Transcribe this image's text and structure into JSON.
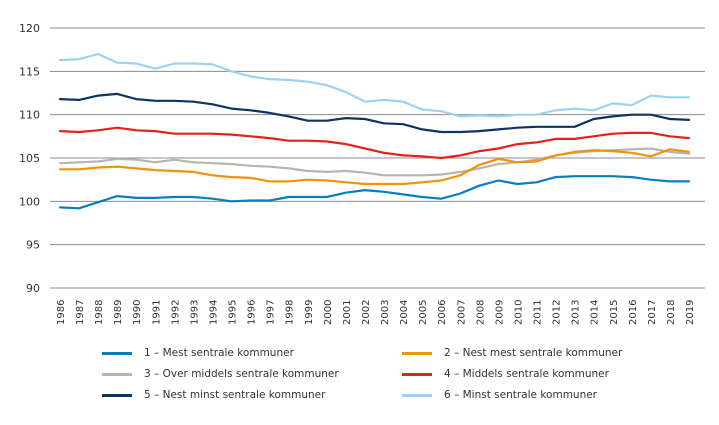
{
  "chart_data": {
    "type": "line",
    "title": "",
    "xlabel": "",
    "ylabel": "",
    "ylim": [
      90,
      120
    ],
    "yticks": [
      90,
      95,
      100,
      105,
      110,
      115,
      120
    ],
    "grid": true,
    "legend_position": "bottom",
    "x": [
      1986,
      1987,
      1988,
      1989,
      1990,
      1991,
      1992,
      1993,
      1994,
      1995,
      1996,
      1997,
      1998,
      1999,
      2000,
      2001,
      2002,
      2003,
      2004,
      2005,
      2006,
      2007,
      2008,
      2009,
      2010,
      2011,
      2012,
      2013,
      2014,
      2015,
      2016,
      2017,
      2018,
      2019
    ],
    "series": [
      {
        "name": "1 – Mest sentrale kommuner",
        "color": "#0a7dc1",
        "values": [
          99.3,
          99.2,
          99.9,
          100.6,
          100.4,
          100.4,
          100.5,
          100.5,
          100.3,
          100.0,
          100.1,
          100.1,
          100.5,
          100.5,
          100.5,
          101.0,
          101.3,
          101.1,
          100.8,
          100.5,
          100.3,
          100.9,
          101.8,
          102.4,
          102.0,
          102.2,
          102.8,
          102.9,
          102.9,
          102.9,
          102.8,
          102.5,
          102.3,
          102.3
        ]
      },
      {
        "name": "2 – Nest mest sentrale kommuner",
        "color": "#f0930a",
        "values": [
          103.7,
          103.7,
          103.9,
          104.0,
          103.8,
          103.6,
          103.5,
          103.4,
          103.0,
          102.8,
          102.7,
          102.3,
          102.3,
          102.5,
          102.4,
          102.2,
          102.0,
          102.0,
          102.0,
          102.2,
          102.4,
          103.0,
          104.2,
          104.9,
          104.5,
          104.6,
          105.3,
          105.7,
          105.9,
          105.8,
          105.6,
          105.2,
          106.0,
          105.7
        ]
      },
      {
        "name": "3 – Over middels sentrale kommuner",
        "color": "#b9b4ae",
        "values": [
          104.4,
          104.5,
          104.6,
          104.9,
          104.8,
          104.5,
          104.8,
          104.5,
          104.4,
          104.3,
          104.1,
          104.0,
          103.8,
          103.5,
          103.4,
          103.5,
          103.3,
          103.0,
          103.0,
          103.0,
          103.1,
          103.4,
          103.8,
          104.3,
          104.5,
          104.8,
          105.3,
          105.6,
          105.8,
          105.9,
          106.0,
          106.1,
          105.7,
          105.5
        ]
      },
      {
        "name": "4 – Middels sentrale kommuner",
        "color": "#e3231b",
        "values": [
          108.1,
          108.0,
          108.2,
          108.5,
          108.2,
          108.1,
          107.8,
          107.8,
          107.8,
          107.7,
          107.5,
          107.3,
          107.0,
          107.0,
          106.9,
          106.6,
          106.1,
          105.6,
          105.3,
          105.2,
          105.0,
          105.3,
          105.8,
          106.1,
          106.6,
          106.8,
          107.2,
          107.2,
          107.5,
          107.8,
          107.9,
          107.9,
          107.5,
          107.3
        ]
      },
      {
        "name": "5 – Nest minst sentrale kommuner",
        "color": "#0c3462",
        "values": [
          111.8,
          111.7,
          112.2,
          112.4,
          111.8,
          111.6,
          111.6,
          111.5,
          111.2,
          110.7,
          110.5,
          110.2,
          109.8,
          109.3,
          109.3,
          109.6,
          109.5,
          109.0,
          108.9,
          108.3,
          108.0,
          108.0,
          108.1,
          108.3,
          108.5,
          108.6,
          108.6,
          108.6,
          109.5,
          109.8,
          110.0,
          110.0,
          109.5,
          109.4
        ]
      },
      {
        "name": "6 – Minst sentrale kommuner",
        "color": "#9dd2f0",
        "values": [
          116.3,
          116.4,
          117.0,
          116.0,
          115.9,
          115.3,
          115.9,
          115.9,
          115.8,
          115.0,
          114.4,
          114.1,
          114.0,
          113.8,
          113.4,
          112.6,
          111.5,
          111.7,
          111.5,
          110.6,
          110.4,
          109.8,
          109.9,
          109.8,
          110.0,
          110.0,
          110.5,
          110.7,
          110.5,
          111.3,
          111.1,
          112.2,
          112.0,
          112.0
        ]
      }
    ],
    "legend_order": [
      0,
      1,
      2,
      3,
      4,
      5
    ]
  }
}
